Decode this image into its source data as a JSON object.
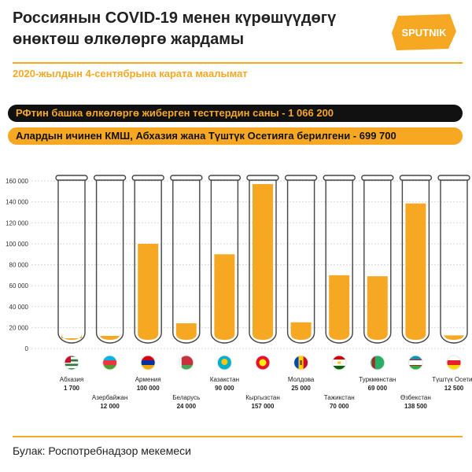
{
  "header": {
    "title": "Россиянын COVID-19 менен күрөшүүдөгү өнөктөш өлкөлөргө жардамы",
    "logo_text": "SPUTNIK",
    "date_note": "2020-жылдын 4-сентябрына карата маалымат"
  },
  "banners": {
    "total": "РФтин башка өлкөлөргө жиберген тесттердин саны - 1 066 200",
    "subset": "Алардын ичинен КМШ, Абхазия жана Түштүк Осетияга берилгени - 699 700"
  },
  "source": "Булак: Роспотребнадзор мекемеси",
  "colors": {
    "accent": "#f7a823",
    "dark": "#111111",
    "tube_outline": "#444444"
  },
  "chart_data": {
    "type": "bar",
    "title": "",
    "xlabel": "",
    "ylabel": "",
    "ylim": [
      0,
      160000
    ],
    "y_ticks": [
      0,
      20000,
      40000,
      60000,
      80000,
      100000,
      120000,
      140000,
      160000
    ],
    "y_tick_labels": [
      "0",
      "20 000",
      "40 000",
      "60 000",
      "80 000",
      "100 000",
      "120 000",
      "140 000",
      "160 000"
    ],
    "grid": true,
    "categories": [
      "Абхазия",
      "Азербайжан",
      "Армения",
      "Беларусь",
      "Казакстан",
      "Кыргызстан",
      "Молдова",
      "Тажикстан",
      "Туркмөнстан",
      "Өзбекстан",
      "Түштүк Осетия"
    ],
    "values": [
      1700,
      12000,
      100000,
      24000,
      90000,
      157000,
      25000,
      70000,
      69000,
      138500,
      12500
    ],
    "value_labels": [
      "1 700",
      "12 000",
      "100 000",
      "24 000",
      "90 000",
      "157 000",
      "25 000",
      "70 000",
      "69 000",
      "138 500",
      "12 500"
    ],
    "flag_icons": [
      "abkhazia-flag-icon",
      "azerbaijan-flag-icon",
      "armenia-flag-icon",
      "belarus-flag-icon",
      "kazakhstan-flag-icon",
      "kyrgyzstan-flag-icon",
      "moldova-flag-icon",
      "tajikistan-flag-icon",
      "turkmenistan-flag-icon",
      "uzbekistan-flag-icon",
      "south-ossetia-flag-icon"
    ]
  }
}
